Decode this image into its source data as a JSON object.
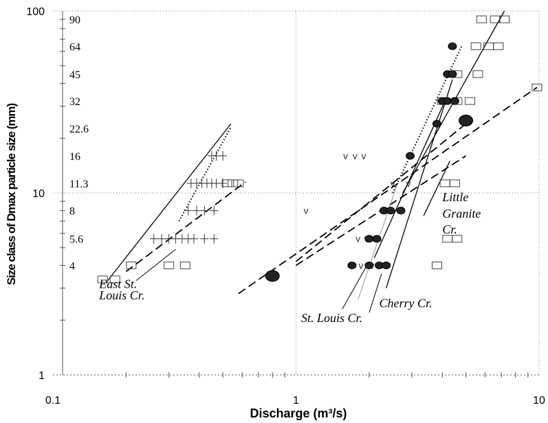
{
  "chart_data": {
    "type": "scatter",
    "xlabel": "Discharge (m³/s)",
    "ylabel": "Size class of Dmax particle size (mm)",
    "xscale": "log",
    "yscale": "log",
    "xlim": [
      0.1,
      10
    ],
    "ylim": [
      1,
      100
    ],
    "x_ticks": [
      "0.1",
      "1",
      "10"
    ],
    "y_ticks": [
      "1",
      "10",
      "100"
    ],
    "size_classes": [
      "4",
      "5.6",
      "8",
      "11.3",
      "16",
      "22.6",
      "32",
      "45",
      "64",
      "90"
    ],
    "size_class_values": [
      4,
      5.6,
      8,
      11.3,
      16,
      22.6,
      32,
      45,
      64,
      90
    ],
    "grid": "dotted",
    "annotations": [
      {
        "text": "East St.",
        "x": 0.155,
        "y": 3.0
      },
      {
        "text": "Louis Cr.",
        "x": 0.155,
        "y": 2.6
      },
      {
        "text": "St. Louis Cr.",
        "x": 1.05,
        "y": 1.95
      },
      {
        "text": "Cherry Cr.",
        "x": 2.2,
        "y": 2.35
      },
      {
        "text": "Little",
        "x": 4.0,
        "y": 9.0
      },
      {
        "text": "Granite",
        "x": 4.0,
        "y": 7.3
      },
      {
        "text": "Cr.",
        "x": 4.0,
        "y": 6.0
      }
    ],
    "series": [
      {
        "marker": "plus",
        "points": [
          [
            0.45,
            16
          ],
          [
            0.47,
            16
          ],
          [
            0.5,
            16
          ],
          [
            0.37,
            11.3
          ],
          [
            0.39,
            11.3
          ],
          [
            0.41,
            11.3
          ],
          [
            0.43,
            11.3
          ],
          [
            0.45,
            11.3
          ],
          [
            0.47,
            11.3
          ],
          [
            0.5,
            11.3
          ],
          [
            0.36,
            8
          ],
          [
            0.39,
            8
          ],
          [
            0.42,
            8
          ],
          [
            0.46,
            8
          ],
          [
            0.26,
            5.6
          ],
          [
            0.28,
            5.6
          ],
          [
            0.3,
            5.6
          ],
          [
            0.32,
            5.6
          ],
          [
            0.34,
            5.6
          ],
          [
            0.36,
            5.6
          ],
          [
            0.38,
            5.6
          ],
          [
            0.42,
            5.6
          ],
          [
            0.46,
            5.6
          ]
        ]
      },
      {
        "marker": "open-square",
        "points": [
          [
            0.16,
            3.35
          ],
          [
            0.18,
            3.35
          ],
          [
            0.21,
            4
          ],
          [
            0.3,
            4
          ],
          [
            0.35,
            4
          ],
          [
            0.52,
            11.3
          ],
          [
            0.55,
            11.3
          ],
          [
            0.58,
            11.3
          ],
          [
            3.8,
            4
          ],
          [
            4.2,
            5.6
          ],
          [
            4.6,
            5.6
          ],
          [
            4.1,
            11.3
          ],
          [
            4.5,
            11.3
          ],
          [
            4.0,
            32
          ],
          [
            4.6,
            32
          ],
          [
            5.2,
            32
          ],
          [
            4.6,
            45
          ],
          [
            5.6,
            45
          ],
          [
            5.5,
            64
          ],
          [
            6.2,
            64
          ],
          [
            6.8,
            64
          ],
          [
            5.8,
            90
          ],
          [
            6.6,
            90
          ],
          [
            7.2,
            90
          ],
          [
            9.8,
            38
          ]
        ]
      },
      {
        "marker": "v",
        "points": [
          [
            1.1,
            8
          ],
          [
            1.6,
            16
          ],
          [
            1.75,
            16
          ],
          [
            1.9,
            16
          ],
          [
            1.8,
            5.6
          ],
          [
            1.95,
            5.6
          ],
          [
            2.1,
            5.6
          ],
          [
            2.25,
            5.6
          ],
          [
            1.85,
            4
          ],
          [
            2.05,
            4
          ],
          [
            2.5,
            11.3
          ],
          [
            2.9,
            11.3
          ]
        ]
      },
      {
        "marker": "filled-circle",
        "points": [
          [
            0.8,
            3.5
          ],
          [
            1.7,
            4
          ],
          [
            2.0,
            4
          ],
          [
            2.2,
            4
          ],
          [
            2.35,
            4
          ],
          [
            2.0,
            5.6
          ],
          [
            2.15,
            5.6
          ],
          [
            2.3,
            8
          ],
          [
            2.45,
            8
          ],
          [
            2.7,
            8
          ],
          [
            2.95,
            16
          ],
          [
            3.8,
            24
          ],
          [
            5.0,
            25
          ],
          [
            4.0,
            32
          ],
          [
            4.2,
            32
          ],
          [
            4.5,
            32
          ],
          [
            4.2,
            45
          ],
          [
            4.4,
            45
          ],
          [
            4.4,
            64
          ]
        ]
      }
    ],
    "fit_lines": [
      {
        "style": "solid",
        "from": [
          0.165,
          3.2
        ],
        "to": [
          0.54,
          24
        ]
      },
      {
        "style": "dotted",
        "from": [
          0.33,
          7.0
        ],
        "to": [
          0.54,
          23
        ]
      },
      {
        "style": "dashed",
        "from": [
          0.2,
          3.7
        ],
        "to": [
          0.62,
          11.5
        ]
      },
      {
        "style": "dashed",
        "from": [
          0.58,
          2.8
        ],
        "to": [
          9.8,
          38
        ]
      },
      {
        "style": "dashed",
        "from": [
          1.0,
          4.2
        ],
        "to": [
          5.0,
          24
        ]
      },
      {
        "style": "dashed",
        "from": [
          1.0,
          4.0
        ],
        "to": [
          5.0,
          16
        ]
      },
      {
        "style": "dotted",
        "from": [
          2.5,
          10
        ],
        "to": [
          4.8,
          64
        ]
      },
      {
        "style": "solid",
        "from": [
          2.35,
          3.0
        ],
        "to": [
          4.4,
          42
        ]
      },
      {
        "style": "solid",
        "from": [
          2.1,
          4.4
        ],
        "to": [
          4.1,
          32
        ]
      },
      {
        "style": "solid",
        "from": [
          2.75,
          10
        ],
        "to": [
          7.2,
          100
        ]
      },
      {
        "style": "gray",
        "from": [
          1.8,
          2.6
        ],
        "to": [
          2.6,
          11
        ]
      },
      {
        "style": "solid",
        "from": [
          3.35,
          7.5
        ],
        "to": [
          4.3,
          15
        ]
      }
    ],
    "annotation_leaders": [
      {
        "from": [
          0.22,
          3.3
        ],
        "to": [
          0.32,
          4.9
        ]
      },
      {
        "from": [
          1.55,
          2.3
        ],
        "to": [
          2.0,
          4.2
        ]
      },
      {
        "from": [
          2.0,
          2.2
        ],
        "to": [
          2.25,
          3.6
        ]
      }
    ]
  }
}
